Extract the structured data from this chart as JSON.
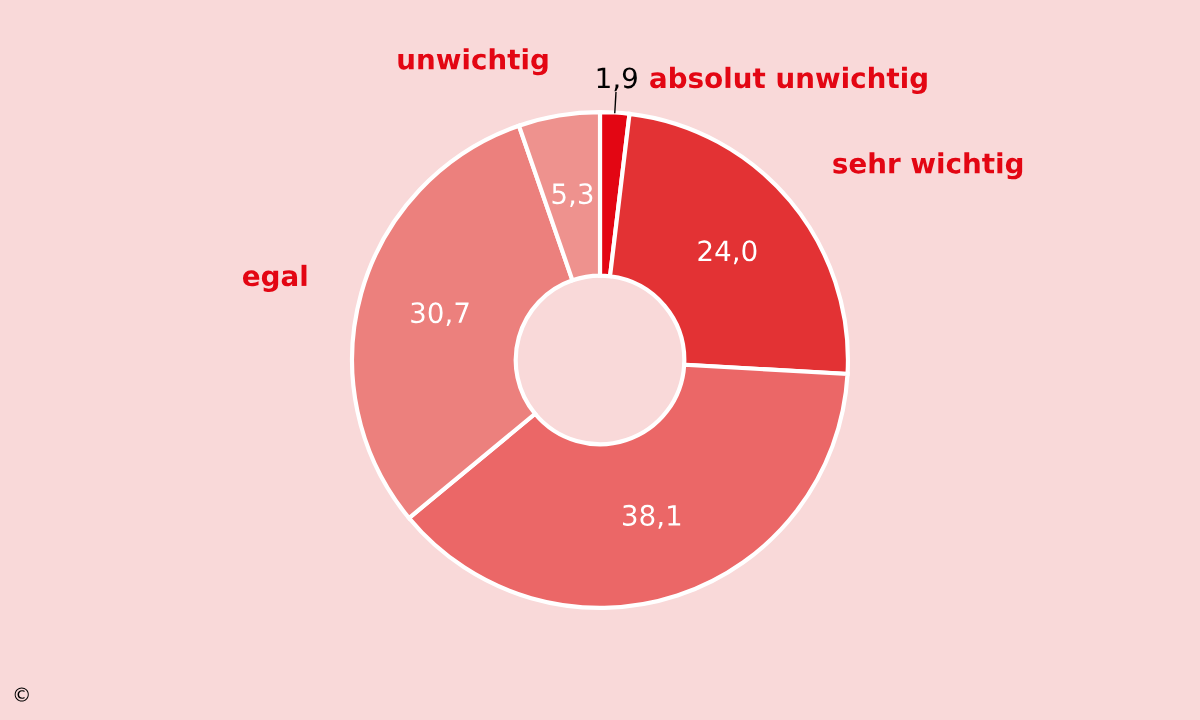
{
  "chart_data": {
    "type": "donut",
    "categories": [
      "absolut unwichtig",
      "sehr wichtig",
      null,
      "egal",
      "unwichtig"
    ],
    "values": [
      1.9,
      24.0,
      38.1,
      30.7,
      5.3
    ],
    "value_labels": [
      "1,9",
      "24,0",
      "38,1",
      "30,7",
      "5,3"
    ],
    "colors": [
      "#e30613",
      "#e33234",
      "#eb6767",
      "#ec807d",
      "#ee928e"
    ],
    "annotations": [
      "©"
    ],
    "legend": false
  }
}
